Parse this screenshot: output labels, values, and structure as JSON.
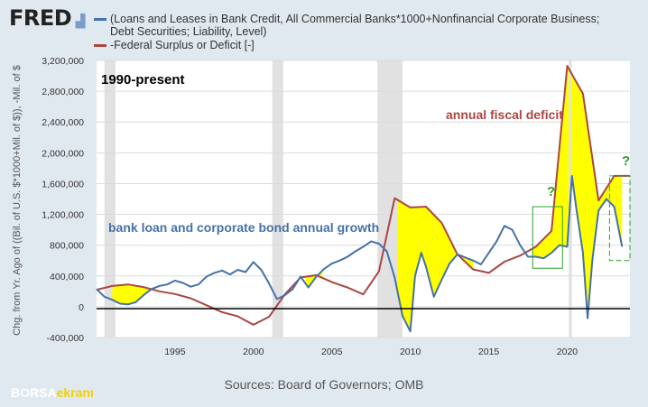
{
  "header": {
    "logo_text": "FRED",
    "legend": [
      {
        "label": "(Loans and Leases in Bank Credit, All Commercial Banks*1000+Nonfinancial Corporate Business; Debt Securities; Liability, Level)",
        "color": "#4572a7"
      },
      {
        "label": "-Federal Surplus or Deficit [-]",
        "color": "#aa4643"
      }
    ]
  },
  "footer": {
    "source": "Sources: Board of Governors; OMB",
    "watermark_1": "BORSA",
    "watermark_2": "ekranı"
  },
  "chart_data": {
    "type": "line",
    "ylabel": "Chg. from Yr. Ago of ((Bil. of U.S. $*1000+Mil. of $)), -Mil. of $",
    "ylim": [
      -400000,
      3200000
    ],
    "yticks": [
      -400000,
      0,
      400000,
      800000,
      1200000,
      1600000,
      2000000,
      2400000,
      2800000,
      3200000
    ],
    "ytick_labels": [
      "-400,000",
      "0",
      "400,000",
      "800,000",
      "1,200,000",
      "1,600,000",
      "2,000,000",
      "2,400,000",
      "2,800,000",
      "3,200,000"
    ],
    "xlim": [
      1990,
      2024
    ],
    "xticks": [
      1995,
      2000,
      2005,
      2010,
      2015,
      2020
    ],
    "recessions": [
      [
        1990.5,
        1991.2
      ],
      [
        2001.2,
        2001.9
      ],
      [
        2007.9,
        2009.5
      ],
      [
        2020.1,
        2020.3
      ]
    ],
    "annotations": [
      {
        "text": "1990-present",
        "color": "#000000"
      },
      {
        "text": "annual fiscal deficit",
        "color": "#aa4643"
      },
      {
        "text": "bank loan and corporate bond annual growth",
        "color": "#4572a7"
      },
      {
        "text": "?",
        "color": "#2ca02c"
      },
      {
        "text": "?",
        "color": "#2ca02c"
      }
    ],
    "series": [
      {
        "name": "(Loans and Leases in Bank Credit, All Commercial Banks*1000+Nonfinancial Corporate Business; Debt Securities; Liability, Level)",
        "color": "#4572a7",
        "x": [
          1990,
          1990.5,
          1991,
          1991.5,
          1992,
          1992.5,
          1993,
          1993.5,
          1994,
          1994.5,
          1995,
          1995.5,
          1996,
          1996.5,
          1997,
          1997.5,
          1998,
          1998.5,
          1999,
          1999.5,
          2000,
          2000.5,
          2001,
          2001.5,
          2002,
          2002.5,
          2003,
          2003.5,
          2004,
          2004.5,
          2005,
          2005.5,
          2006,
          2006.5,
          2007,
          2007.5,
          2008,
          2008.5,
          2009,
          2009.5,
          2010,
          2010.3,
          2010.7,
          2011,
          2011.5,
          2012,
          2012.5,
          2013,
          2013.5,
          2014,
          2014.5,
          2015,
          2015.5,
          2016,
          2016.5,
          2017,
          2017.5,
          2018,
          2018.5,
          2019,
          2019.5,
          2020,
          2020.3,
          2020.6,
          2021,
          2021.3,
          2021.6,
          2022,
          2022.5,
          2023,
          2023.5
        ],
        "y": [
          230000,
          130000,
          90000,
          40000,
          30000,
          60000,
          150000,
          230000,
          270000,
          290000,
          340000,
          310000,
          260000,
          290000,
          390000,
          440000,
          470000,
          420000,
          480000,
          450000,
          580000,
          480000,
          300000,
          100000,
          150000,
          230000,
          390000,
          250000,
          390000,
          490000,
          560000,
          600000,
          650000,
          720000,
          780000,
          850000,
          820000,
          720000,
          380000,
          -120000,
          -320000,
          400000,
          700000,
          520000,
          130000,
          350000,
          560000,
          680000,
          640000,
          600000,
          550000,
          700000,
          850000,
          1050000,
          1000000,
          800000,
          650000,
          650000,
          630000,
          700000,
          800000,
          780000,
          1700000,
          1250000,
          700000,
          -150000,
          600000,
          1250000,
          1400000,
          1300000,
          780000
        ]
      },
      {
        "name": "-Federal Surplus or Deficit [-]",
        "color": "#aa4643",
        "x": [
          1990,
          1991,
          1992,
          1993,
          1994,
          1995,
          1996,
          1997,
          1998,
          1999,
          2000,
          2001,
          2002,
          2003,
          2004,
          2005,
          2006,
          2007,
          2008,
          2009,
          2010,
          2011,
          2012,
          2013,
          2014,
          2015,
          2016,
          2017,
          2018,
          2019,
          2020,
          2021,
          2022,
          2023,
          2024
        ],
        "y": [
          220000,
          270000,
          290000,
          255000,
          200000,
          165000,
          110000,
          20000,
          -70000,
          -125000,
          -235000,
          -130000,
          160000,
          380000,
          410000,
          320000,
          250000,
          160000,
          460000,
          1410000,
          1290000,
          1300000,
          1090000,
          680000,
          485000,
          440000,
          585000,
          665000,
          780000,
          985000,
          3130000,
          2770000,
          1380000,
          1700000,
          1700000
        ]
      }
    ]
  }
}
